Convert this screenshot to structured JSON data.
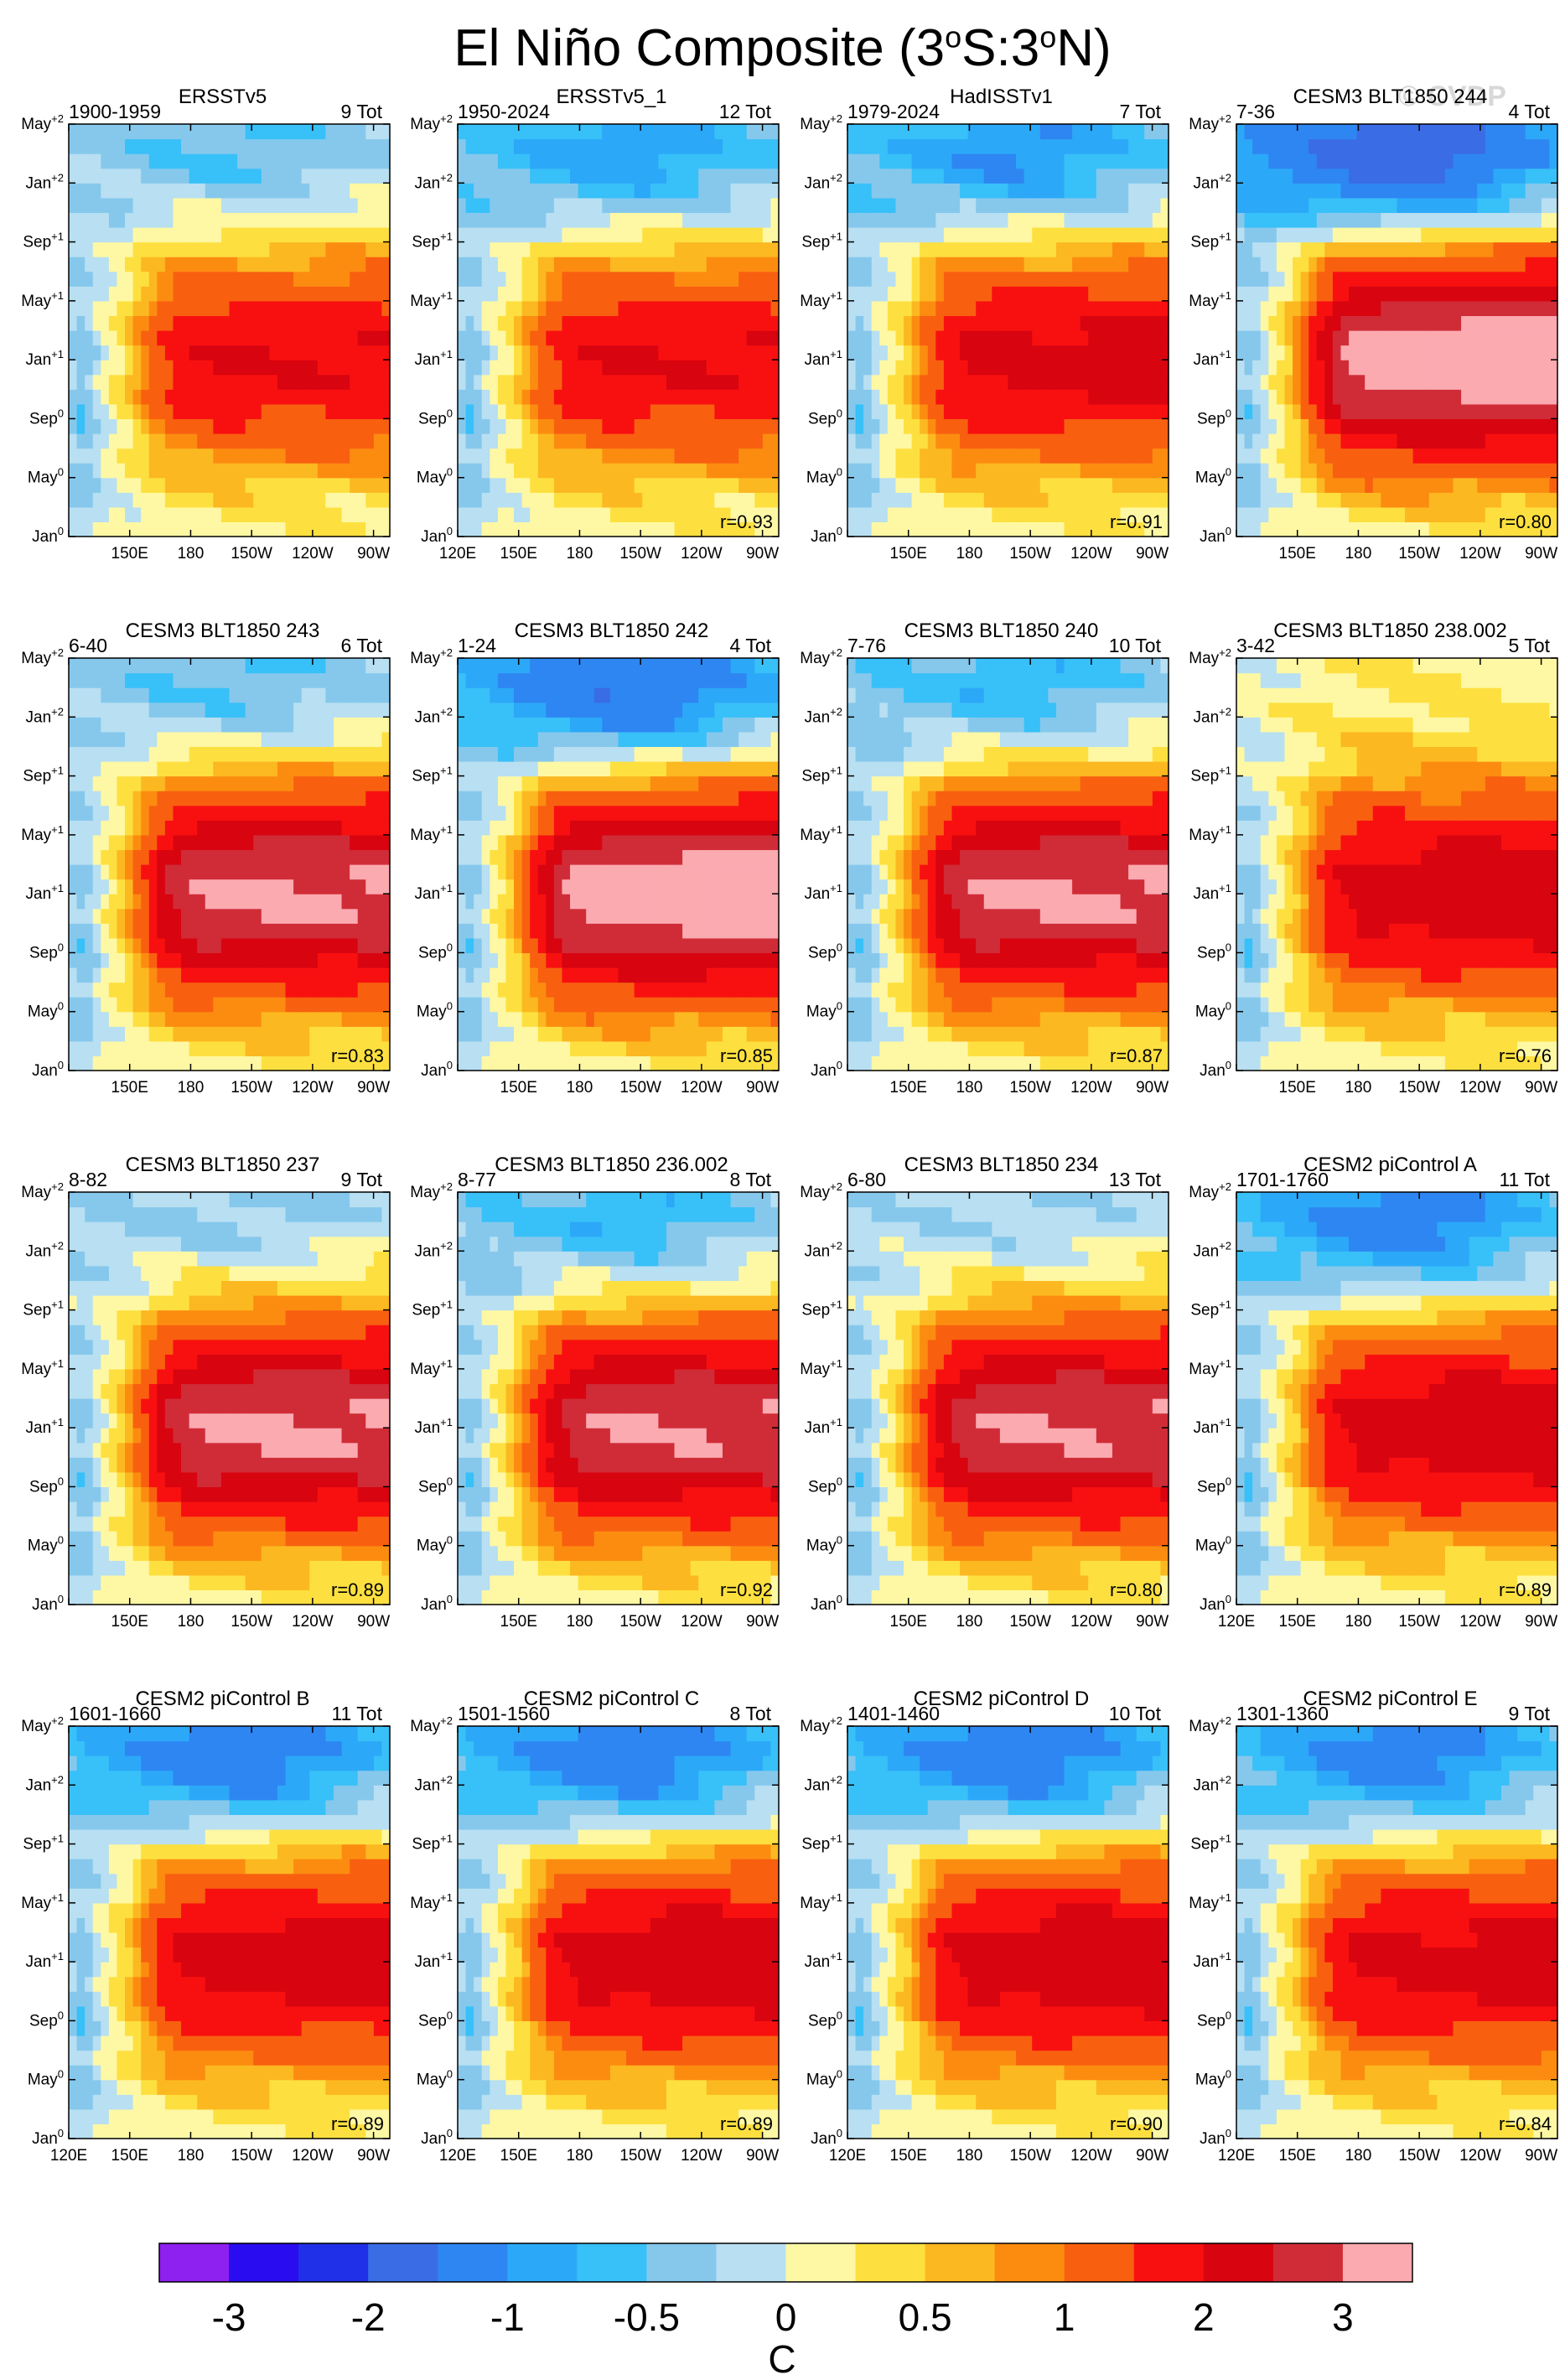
{
  "figure": {
    "title_main": "El Niño Composite (3",
    "title_sup1": "o",
    "title_mid": "S:3",
    "title_sup2": "o",
    "title_end": "N)",
    "watermark": "© CVDP"
  },
  "colors": {
    "levels": [
      "#8e20f0",
      "#2a0cf0",
      "#2030e8",
      "#3a6ce6",
      "#2e86f2",
      "#2ca8f8",
      "#38c0f8",
      "#86c8ec",
      "#b8dff2",
      "#fef8a4",
      "#fde040",
      "#fcb820",
      "#fc8c10",
      "#f86010",
      "#f81010",
      "#d80410",
      "#d02c38",
      "#fbaab0"
    ],
    "mapping_note_colors_only": true
  },
  "chart_data": {
    "type": "heatmap",
    "x_tick_labels_full": [
      "120E",
      "150E",
      "180",
      "150W",
      "120W",
      "90W"
    ],
    "x_tick_labels_short": [
      "150E",
      "180",
      "150W",
      "120W",
      "90W"
    ],
    "y_tick_base": [
      "Jan",
      "May",
      "Sep",
      "Jan",
      "May",
      "Sep",
      "Jan",
      "May"
    ],
    "y_tick_sup": [
      "0",
      "0",
      "0",
      "+1",
      "+1",
      "+1",
      "+2",
      "+2"
    ],
    "colorbar": {
      "unit": "C",
      "labels": [
        "-3",
        "-2",
        "-1",
        "-0.5",
        "0",
        "0.5",
        "1",
        "2",
        "3"
      ],
      "bins": 18
    },
    "panels": [
      {
        "title": "ERSSTv5",
        "years": "1900-1959",
        "count": "9 Tot",
        "r": "",
        "xfull": false,
        "peak": 2.0,
        "late": -0.6,
        "pink": false
      },
      {
        "title": "ERSSTv5_1",
        "years": "1950-2024",
        "count": "12 Tot",
        "r": "r=0.93",
        "xfull": true,
        "peak": 2.0,
        "late": -1.0,
        "pink": false
      },
      {
        "title": "HadISSTv1",
        "years": "1979-2024",
        "count": "7 Tot",
        "r": "r=0.91",
        "xfull": false,
        "peak": 2.2,
        "late": -1.1,
        "pink": false
      },
      {
        "title": "CESM3 BLT1850 244",
        "years": "7-36",
        "count": "4 Tot",
        "r": "r=0.80",
        "xfull": false,
        "peak": 3.4,
        "late": -2.0,
        "pink": true
      },
      {
        "title": "CESM3 BLT1850 243",
        "years": "6-40",
        "count": "6 Tot",
        "r": "r=0.83",
        "xfull": false,
        "peak": 3.1,
        "late": -0.6,
        "pink": true
      },
      {
        "title": "CESM3 BLT1850 242",
        "years": "1-24",
        "count": "4 Tot",
        "r": "r=0.85",
        "xfull": false,
        "peak": 3.4,
        "late": -1.6,
        "pink": true
      },
      {
        "title": "CESM3 BLT1850 240",
        "years": "7-76",
        "count": "10 Tot",
        "r": "r=0.87",
        "xfull": false,
        "peak": 3.1,
        "late": -0.8,
        "pink": true
      },
      {
        "title": "CESM3 BLT1850 238.002",
        "years": "3-42",
        "count": "5 Tot",
        "r": "r=0.76",
        "xfull": false,
        "peak": 2.4,
        "late": 0.2,
        "pink": false
      },
      {
        "title": "CESM3 BLT1850 237",
        "years": "8-82",
        "count": "9 Tot",
        "r": "r=0.89",
        "xfull": false,
        "peak": 3.1,
        "late": -0.4,
        "pink": true
      },
      {
        "title": "CESM3 BLT1850 236.002",
        "years": "8-77",
        "count": "8 Tot",
        "r": "r=0.92",
        "xfull": false,
        "peak": 3.0,
        "late": -0.8,
        "pink": true
      },
      {
        "title": "CESM3 BLT1850 234",
        "years": "6-80",
        "count": "13 Tot",
        "r": "r=0.80",
        "xfull": false,
        "peak": 3.0,
        "late": -0.3,
        "pink": true
      },
      {
        "title": "CESM2 piControl A",
        "years": "1701-1760",
        "count": "11 Tot",
        "r": "r=0.89",
        "xfull": true,
        "peak": 2.4,
        "late": -1.3,
        "pink": false
      },
      {
        "title": "CESM2 piControl B",
        "years": "1601-1660",
        "count": "11 Tot",
        "r": "r=0.89",
        "xfull": true,
        "peak": 2.3,
        "late": -1.4,
        "pink": false
      },
      {
        "title": "CESM2 piControl C",
        "years": "1501-1560",
        "count": "8 Tot",
        "r": "r=0.89",
        "xfull": true,
        "peak": 2.4,
        "late": -1.4,
        "pink": false
      },
      {
        "title": "CESM2 piControl D",
        "years": "1401-1460",
        "count": "10 Tot",
        "r": "r=0.90",
        "xfull": true,
        "peak": 2.4,
        "late": -1.4,
        "pink": false
      },
      {
        "title": "CESM2 piControl E",
        "years": "1301-1360",
        "count": "9 Tot",
        "r": "r=0.84",
        "xfull": true,
        "peak": 2.2,
        "late": -1.3,
        "pink": false
      }
    ]
  }
}
